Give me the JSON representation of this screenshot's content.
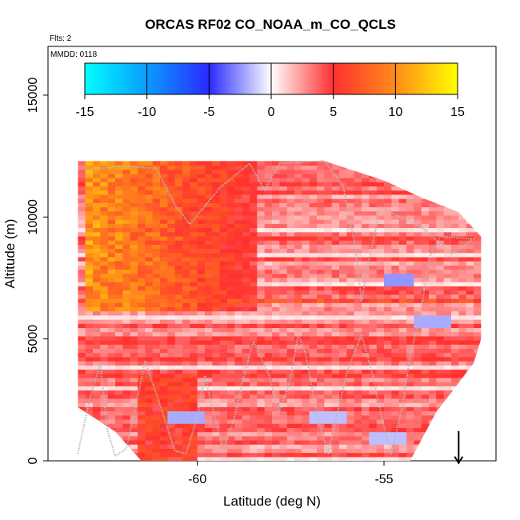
{
  "chart_data": {
    "type": "heatmap",
    "title": "ORCAS RF02 CO_NOAA_m_CO_QCLS",
    "subtitle": "Flts: 2",
    "annotation": "MMDD: 0118",
    "xlabel": "Latitude (deg N)",
    "ylabel": "Altitude (m)",
    "xlim": [
      -64,
      -52
    ],
    "ylim": [
      0,
      17000
    ],
    "x_ticks": [
      {
        "value": -60,
        "label": "-60"
      },
      {
        "value": -55,
        "label": "-55"
      }
    ],
    "y_ticks": [
      {
        "value": 0,
        "label": "0"
      },
      {
        "value": 5000,
        "label": "5000"
      },
      {
        "value": 10000,
        "label": "10000"
      },
      {
        "value": 15000,
        "label": "15000"
      }
    ],
    "grid": false,
    "colorbar": {
      "placement": "top",
      "range": [
        -15,
        15
      ],
      "ticks": [
        {
          "value": -15,
          "label": "-15"
        },
        {
          "value": -10,
          "label": "-10"
        },
        {
          "value": -5,
          "label": "-5"
        },
        {
          "value": 0,
          "label": "0"
        },
        {
          "value": 5,
          "label": "5"
        },
        {
          "value": 10,
          "label": "10"
        },
        {
          "value": 15,
          "label": "15"
        }
      ],
      "stops": [
        {
          "value": -15,
          "color": "#00ffff"
        },
        {
          "value": -10,
          "color": "#0a9bff"
        },
        {
          "value": -5,
          "color": "#2a2aff"
        },
        {
          "value": 0,
          "color": "#ffffff"
        },
        {
          "value": 5,
          "color": "#ff3030"
        },
        {
          "value": 10,
          "color": "#ff8c1a"
        },
        {
          "value": 15,
          "color": "#ffff00"
        }
      ]
    },
    "heatmap": {
      "lat_range": [
        -63.2,
        -52.4
      ],
      "alt_range": [
        0,
        12300
      ],
      "top_edge": [
        {
          "lat": -63.2,
          "alt": 12300
        },
        {
          "lat": -58.0,
          "alt": 12300
        },
        {
          "lat": -56.6,
          "alt": 12300
        },
        {
          "lat": -55.0,
          "alt": 11500
        },
        {
          "lat": -54.0,
          "alt": 10800
        },
        {
          "lat": -53.0,
          "alt": 10200
        },
        {
          "lat": -52.4,
          "alt": 9200
        }
      ],
      "bottom_edge": [
        {
          "lat": -63.2,
          "alt": 2200
        },
        {
          "lat": -62.2,
          "alt": 1200
        },
        {
          "lat": -61.5,
          "alt": 0
        },
        {
          "lat": -54.3,
          "alt": 0
        },
        {
          "lat": -53.6,
          "alt": 2000
        },
        {
          "lat": -52.6,
          "alt": 4000
        },
        {
          "lat": -52.4,
          "alt": 5000
        }
      ],
      "field": {
        "upper_core": {
          "lat_min": -63.0,
          "lat_max": -58.5,
          "alt_min": 6000,
          "alt_max": 12200,
          "value": 10.5
        },
        "lower_plume": {
          "lat_min": -61.8,
          "lat_max": -60.2,
          "alt_min": 0,
          "alt_max": 3500,
          "value": 6.5
        },
        "background": 3.5,
        "negative_spots": [
          {
            "lat": -54.7,
            "alt": 7300,
            "value": -2.5
          },
          {
            "lat": -53.8,
            "alt": 5600,
            "value": -2.0
          },
          {
            "lat": -60.4,
            "alt": 1700,
            "value": -2.0
          },
          {
            "lat": -56.6,
            "alt": 1700,
            "value": -1.5
          },
          {
            "lat": -55.0,
            "alt": 800,
            "value": -1.5
          }
        ]
      }
    },
    "flight_track": {
      "color": "#b8b8b8",
      "points": [
        [
          -63.2,
          300
        ],
        [
          -62.9,
          2400
        ],
        [
          -62.6,
          4000
        ],
        [
          -62.4,
          1200
        ],
        [
          -62.2,
          200
        ],
        [
          -61.9,
          500
        ],
        [
          -61.6,
          2600
        ],
        [
          -61.4,
          4100
        ],
        [
          -61.0,
          2300
        ],
        [
          -60.6,
          400
        ],
        [
          -60.3,
          300
        ],
        [
          -60.0,
          1800
        ],
        [
          -59.8,
          3500
        ],
        [
          -59.6,
          2200
        ],
        [
          -59.3,
          400
        ],
        [
          -59.0,
          1800
        ],
        [
          -58.8,
          3200
        ],
        [
          -58.5,
          4900
        ],
        [
          -58.1,
          3600
        ],
        [
          -57.8,
          2000
        ],
        [
          -57.5,
          3400
        ],
        [
          -57.3,
          5200
        ],
        [
          -57.1,
          4400
        ],
        [
          -56.8,
          1900
        ],
        [
          -56.5,
          300
        ],
        [
          -56.3,
          1600
        ],
        [
          -56.0,
          3600
        ],
        [
          -55.6,
          5200
        ],
        [
          -55.3,
          3500
        ],
        [
          -55.0,
          1400
        ],
        [
          -54.8,
          300
        ],
        [
          -54.5,
          2300
        ],
        [
          -54.3,
          4300
        ],
        [
          -54.0,
          6200
        ],
        [
          -53.8,
          8300
        ],
        [
          -53.5,
          9200
        ],
        [
          -52.6,
          9100
        ],
        [
          -53.2,
          8500
        ],
        [
          -54.0,
          9600
        ],
        [
          -55.1,
          10400
        ],
        [
          -55.4,
          8200
        ],
        [
          -55.6,
          6600
        ],
        [
          -55.8,
          9000
        ],
        [
          -56.1,
          11300
        ],
        [
          -56.6,
          12300
        ],
        [
          -57.8,
          12200
        ],
        [
          -58.2,
          11100
        ],
        [
          -58.6,
          12200
        ],
        [
          -59.4,
          11200
        ],
        [
          -60.2,
          9700
        ],
        [
          -60.6,
          10500
        ],
        [
          -61.1,
          12000
        ],
        [
          -62.1,
          12100
        ],
        [
          -63.0,
          11900
        ]
      ]
    },
    "marker": {
      "lat": -53.0,
      "alt": 500,
      "symbol": "down-arrow"
    }
  }
}
